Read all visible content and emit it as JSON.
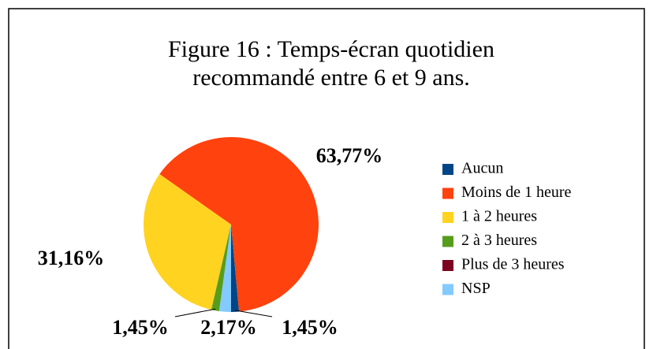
{
  "chart_data": {
    "type": "pie",
    "title": "Figure 16 : Temps-écran quotidien recommandé entre 6 et 9 ans.",
    "categories": [
      "Aucun",
      "Moins de 1 heure",
      "1 à 2 heures",
      "2 à 3 heures",
      "Plus de 3 heures",
      "NSP"
    ],
    "values": [
      1.45,
      63.77,
      31.16,
      1.45,
      0,
      2.17
    ],
    "value_labels": [
      "1,45%",
      "63,77%",
      "31,16%",
      "1,45%",
      null,
      "2,17%"
    ],
    "colors": [
      "#004586",
      "#ff420e",
      "#ffd320",
      "#579d1c",
      "#7e0021",
      "#83caff"
    ],
    "legend": "right"
  }
}
